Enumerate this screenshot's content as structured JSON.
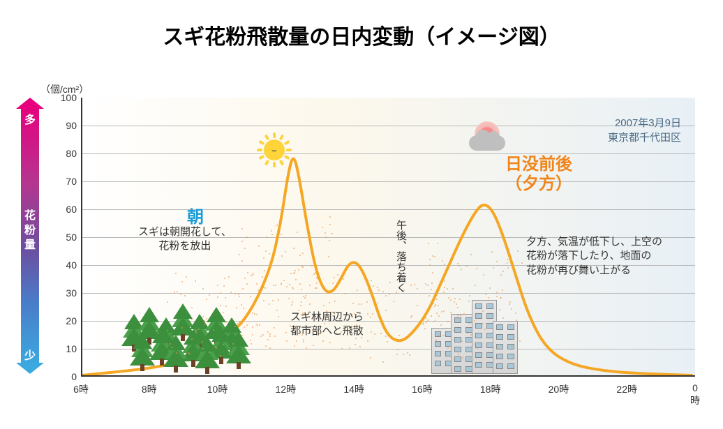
{
  "title": "スギ花粉飛散量の日内変動（イメージ図）",
  "chart": {
    "y_unit": "（個/cm²）",
    "y_ticks": [
      0,
      10,
      20,
      30,
      40,
      50,
      60,
      70,
      80,
      90,
      100
    ],
    "ylim": [
      0,
      100
    ],
    "x_ticks": [
      "6時",
      "8時",
      "10時",
      "12時",
      "14時",
      "16時",
      "18時",
      "20時",
      "22時",
      "0時"
    ],
    "line_color": "#f5a623",
    "line_width": 4,
    "grid_color": "#b8b8b8",
    "axis_color": "#333333",
    "background_gradient": [
      "#ffffff",
      "#fdf8ec",
      "#e8f0f6"
    ],
    "curve_points": [
      [
        0,
        0
      ],
      [
        20,
        0.5
      ],
      [
        60,
        1.5
      ],
      [
        110,
        3
      ],
      [
        160,
        6
      ],
      [
        210,
        14
      ],
      [
        240,
        22
      ],
      [
        270,
        38
      ],
      [
        285,
        55
      ],
      [
        295,
        72
      ],
      [
        303,
        80
      ],
      [
        311,
        72
      ],
      [
        322,
        55
      ],
      [
        335,
        38
      ],
      [
        348,
        30
      ],
      [
        360,
        30
      ],
      [
        372,
        35
      ],
      [
        382,
        40
      ],
      [
        392,
        41
      ],
      [
        402,
        38
      ],
      [
        415,
        30
      ],
      [
        428,
        20
      ],
      [
        440,
        14
      ],
      [
        455,
        12
      ],
      [
        470,
        14
      ],
      [
        495,
        22
      ],
      [
        520,
        36
      ],
      [
        545,
        50
      ],
      [
        562,
        58
      ],
      [
        575,
        62
      ],
      [
        588,
        60
      ],
      [
        602,
        52
      ],
      [
        620,
        38
      ],
      [
        640,
        22
      ],
      [
        665,
        10
      ],
      [
        700,
        4
      ],
      [
        750,
        1.5
      ],
      [
        810,
        0.5
      ],
      [
        875,
        0
      ]
    ]
  },
  "vbar": {
    "top": "多",
    "mid": "花粉量",
    "bot": "少",
    "gradient": [
      "#e6007e",
      "#b4368f",
      "#6b4ea0",
      "#4a7bc8",
      "#3ba9e0"
    ]
  },
  "date_caption": {
    "line1": "2007年3月9日",
    "line2": "東京都千代田区"
  },
  "peaks": {
    "morning_label": "朝",
    "morning_color": "#1a9dd8",
    "sunset_label_l1": "日没前後",
    "sunset_label_l2": "（夕方）",
    "sunset_color": "#f08519"
  },
  "descriptions": {
    "morning": "スギは朝開花して、\n花粉を放出",
    "midday": "スギ林周辺から\n都市部へと飛散",
    "afternoon": "午後、落ち着く",
    "evening": "夕方、気温が低下し、上空の\n花粉が落下したり、地面の\n花粉が再び舞い上がる"
  },
  "icon_colors": {
    "sun": "#ffd43b",
    "tree_green": [
      "#3c8f3c",
      "#4aa04a"
    ],
    "tree_trunk": "#6b4226",
    "building": "#d5d5d5",
    "cloud": "#bfbfbf",
    "sunset_sun": "#f48c8c",
    "pollen_dot": "#e89850"
  }
}
